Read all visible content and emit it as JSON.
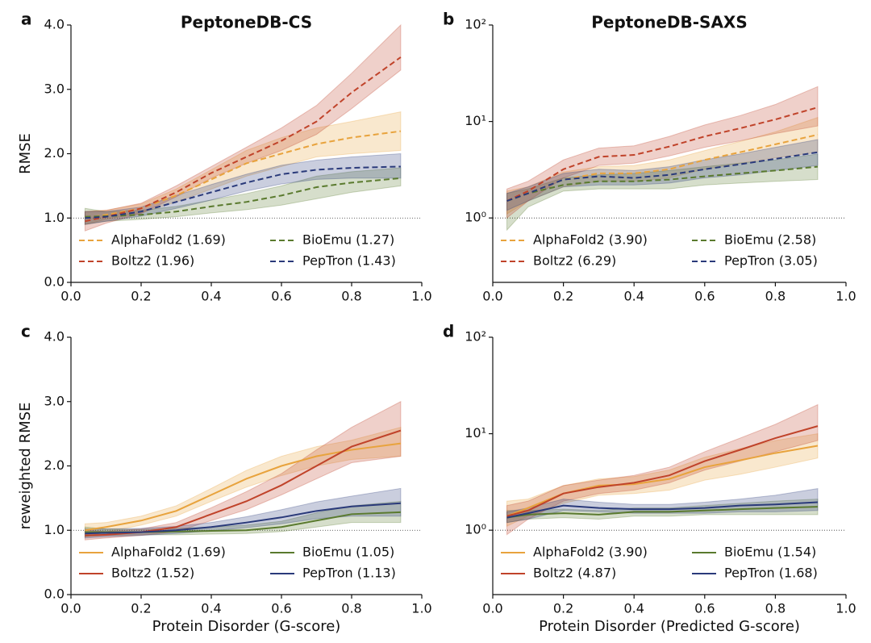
{
  "chart_data": [
    {
      "type": "line",
      "panel_label": "a",
      "title": "PeptoneDB-CS",
      "y_label": "RMSE",
      "linestyle": "dashed",
      "yscale": "linear",
      "hline": 1,
      "x": [
        0.04,
        0.1,
        0.2,
        0.3,
        0.4,
        0.5,
        0.6,
        0.7,
        0.8,
        0.94
      ],
      "xlim": [
        0,
        1
      ],
      "xticks": [
        {
          "value": 0,
          "label": "0.0"
        },
        {
          "value": 0.2,
          "label": "0.2"
        },
        {
          "value": 0.4,
          "label": "0.4"
        },
        {
          "value": 0.6,
          "label": "0.6"
        },
        {
          "value": 0.8,
          "label": "0.8"
        },
        {
          "value": 1,
          "label": "1.0"
        }
      ],
      "ylim": [
        0,
        4
      ],
      "yticks": [
        {
          "value": 0,
          "label": "0.0"
        },
        {
          "value": 1,
          "label": "1.0"
        },
        {
          "value": 2,
          "label": "2.0"
        },
        {
          "value": 3,
          "label": "3.0"
        },
        {
          "value": 4,
          "label": "4.0"
        }
      ],
      "series": [
        {
          "name": "AlphaFold2 (1.69)",
          "color": "#e8a33d",
          "values": [
            1.0,
            1.05,
            1.15,
            1.35,
            1.6,
            1.85,
            2.0,
            2.15,
            2.25,
            2.35
          ],
          "lower": [
            0.9,
            0.98,
            1.08,
            1.25,
            1.45,
            1.65,
            1.8,
            1.95,
            2.0,
            2.05
          ],
          "upper": [
            1.1,
            1.12,
            1.22,
            1.45,
            1.75,
            2.05,
            2.25,
            2.4,
            2.5,
            2.65
          ]
        },
        {
          "name": "BioEmu (1.27)",
          "color": "#5a7a2e",
          "values": [
            1.02,
            1.03,
            1.05,
            1.1,
            1.18,
            1.25,
            1.35,
            1.48,
            1.55,
            1.62
          ],
          "lower": [
            0.9,
            0.95,
            0.98,
            1.02,
            1.08,
            1.13,
            1.2,
            1.3,
            1.4,
            1.5
          ],
          "upper": [
            1.15,
            1.1,
            1.12,
            1.18,
            1.28,
            1.38,
            1.5,
            1.65,
            1.72,
            1.78
          ]
        },
        {
          "name": "Boltz2 (1.96)",
          "color": "#c0432a",
          "values": [
            0.95,
            1.02,
            1.15,
            1.4,
            1.7,
            1.95,
            2.2,
            2.5,
            2.95,
            3.5
          ],
          "lower": [
            0.8,
            0.92,
            1.07,
            1.33,
            1.62,
            1.85,
            2.05,
            2.3,
            2.7,
            3.3
          ],
          "upper": [
            1.1,
            1.12,
            1.23,
            1.5,
            1.8,
            2.1,
            2.4,
            2.75,
            3.25,
            4.0
          ]
        },
        {
          "name": "PepTron (1.43)",
          "color": "#2a3a7a",
          "values": [
            1.0,
            1.02,
            1.1,
            1.25,
            1.4,
            1.55,
            1.68,
            1.75,
            1.78,
            1.8
          ],
          "lower": [
            0.9,
            0.95,
            1.03,
            1.15,
            1.28,
            1.42,
            1.53,
            1.6,
            1.62,
            1.62
          ],
          "upper": [
            1.1,
            1.1,
            1.17,
            1.35,
            1.52,
            1.68,
            1.82,
            1.9,
            1.95,
            2.0
          ]
        }
      ]
    },
    {
      "type": "line",
      "panel_label": "b",
      "title": "PeptoneDB-SAXS",
      "linestyle": "dashed",
      "yscale": "log",
      "hline": 1,
      "x": [
        0.04,
        0.1,
        0.2,
        0.3,
        0.4,
        0.5,
        0.6,
        0.7,
        0.8,
        0.92
      ],
      "xlim": [
        0,
        1
      ],
      "xticks": [
        {
          "value": 0,
          "label": "0.0"
        },
        {
          "value": 0.2,
          "label": "0.2"
        },
        {
          "value": 0.4,
          "label": "0.4"
        },
        {
          "value": 0.6,
          "label": "0.6"
        },
        {
          "value": 0.8,
          "label": "0.8"
        },
        {
          "value": 1,
          "label": "1.0"
        }
      ],
      "ylim": [
        0.215,
        100
      ],
      "yticks": [
        {
          "value": 1,
          "label": "10⁰"
        },
        {
          "value": 10,
          "label": "10¹"
        },
        {
          "value": 100,
          "label": "10²"
        }
      ],
      "series": [
        {
          "name": "AlphaFold2 (3.90)",
          "color": "#e8a33d",
          "values": [
            1.5,
            1.8,
            2.5,
            2.9,
            2.9,
            3.2,
            4.0,
            4.8,
            5.8,
            7.3
          ],
          "lower": [
            1.1,
            1.5,
            2.1,
            2.4,
            2.4,
            2.6,
            3.2,
            3.7,
            4.2,
            4.8
          ],
          "upper": [
            1.9,
            2.1,
            3.0,
            3.4,
            3.5,
            4.0,
            5.0,
            6.2,
            7.8,
            11
          ]
        },
        {
          "name": "BioEmu (2.58)",
          "color": "#5a7a2e",
          "values": [
            1.5,
            1.8,
            2.2,
            2.4,
            2.4,
            2.5,
            2.7,
            2.9,
            3.1,
            3.4
          ],
          "lower": [
            0.75,
            1.3,
            1.9,
            2.0,
            2.0,
            2.0,
            2.2,
            2.3,
            2.4,
            2.5
          ],
          "upper": [
            1.8,
            2.0,
            2.6,
            2.8,
            2.9,
            3.1,
            3.4,
            3.7,
            4.0,
            4.6
          ]
        },
        {
          "name": "Boltz2 (6.29)",
          "color": "#c0432a",
          "values": [
            1.5,
            1.9,
            3.2,
            4.3,
            4.5,
            5.5,
            7.0,
            8.5,
            10.5,
            14
          ],
          "lower": [
            1.0,
            1.5,
            2.6,
            3.5,
            3.7,
            4.4,
            5.4,
            6.3,
            7.5,
            9
          ],
          "upper": [
            2.0,
            2.4,
            4.0,
            5.3,
            5.6,
            7.0,
            9.2,
            11.5,
            15,
            23
          ]
        },
        {
          "name": "PepTron (3.05)",
          "color": "#2a3a7a",
          "values": [
            1.5,
            1.8,
            2.5,
            2.7,
            2.6,
            2.8,
            3.2,
            3.6,
            4.1,
            4.8
          ],
          "lower": [
            1.2,
            1.5,
            2.1,
            2.2,
            2.2,
            2.3,
            2.6,
            2.8,
            3.1,
            3.5
          ],
          "upper": [
            1.8,
            2.1,
            2.9,
            3.2,
            3.1,
            3.4,
            4.0,
            4.6,
            5.4,
            6.5
          ]
        }
      ]
    },
    {
      "type": "line",
      "panel_label": "c",
      "y_label": "reweighted RMSE",
      "x_label": "Protein Disorder (G-score)",
      "linestyle": "solid",
      "yscale": "linear",
      "hline": 1,
      "x": [
        0.04,
        0.1,
        0.2,
        0.3,
        0.4,
        0.5,
        0.6,
        0.7,
        0.8,
        0.94
      ],
      "xlim": [
        0,
        1
      ],
      "xticks": [
        {
          "value": 0,
          "label": "0.0"
        },
        {
          "value": 0.2,
          "label": "0.2"
        },
        {
          "value": 0.4,
          "label": "0.4"
        },
        {
          "value": 0.6,
          "label": "0.6"
        },
        {
          "value": 0.8,
          "label": "0.8"
        },
        {
          "value": 1,
          "label": "1.0"
        }
      ],
      "ylim": [
        0,
        4
      ],
      "yticks": [
        {
          "value": 0,
          "label": "0.0"
        },
        {
          "value": 1,
          "label": "1.0"
        },
        {
          "value": 2,
          "label": "2.0"
        },
        {
          "value": 3,
          "label": "3.0"
        },
        {
          "value": 4,
          "label": "4.0"
        }
      ],
      "series": [
        {
          "name": "AlphaFold2 (1.69)",
          "color": "#e8a33d",
          "values": [
            1.0,
            1.05,
            1.15,
            1.3,
            1.55,
            1.8,
            2.0,
            2.15,
            2.25,
            2.35
          ],
          "lower": [
            0.9,
            0.97,
            1.08,
            1.22,
            1.45,
            1.67,
            1.85,
            2.0,
            2.1,
            2.15
          ],
          "upper": [
            1.1,
            1.12,
            1.22,
            1.38,
            1.65,
            1.93,
            2.15,
            2.3,
            2.4,
            2.6
          ]
        },
        {
          "name": "BioEmu (1.05)",
          "color": "#5a7a2e",
          "values": [
            0.97,
            0.97,
            0.97,
            0.98,
            0.99,
            1.0,
            1.05,
            1.15,
            1.25,
            1.28
          ],
          "lower": [
            0.9,
            0.92,
            0.93,
            0.93,
            0.94,
            0.95,
            0.98,
            1.05,
            1.12,
            1.12
          ],
          "upper": [
            1.05,
            1.02,
            1.01,
            1.03,
            1.05,
            1.08,
            1.14,
            1.27,
            1.38,
            1.45
          ]
        },
        {
          "name": "Boltz2 (1.52)",
          "color": "#c0432a",
          "values": [
            0.92,
            0.93,
            0.97,
            1.05,
            1.25,
            1.45,
            1.7,
            2.0,
            2.3,
            2.55
          ],
          "lower": [
            0.85,
            0.88,
            0.92,
            0.98,
            1.15,
            1.32,
            1.55,
            1.8,
            2.05,
            2.15
          ],
          "upper": [
            1.0,
            0.98,
            1.02,
            1.12,
            1.35,
            1.6,
            1.88,
            2.25,
            2.6,
            3.0
          ]
        },
        {
          "name": "PepTron (1.13)",
          "color": "#2a3a7a",
          "values": [
            0.95,
            0.96,
            0.97,
            1.0,
            1.05,
            1.12,
            1.2,
            1.3,
            1.37,
            1.42
          ],
          "lower": [
            0.88,
            0.9,
            0.92,
            0.95,
            0.99,
            1.04,
            1.1,
            1.18,
            1.22,
            1.22
          ],
          "upper": [
            1.02,
            1.02,
            1.03,
            1.06,
            1.12,
            1.21,
            1.32,
            1.44,
            1.53,
            1.65
          ]
        }
      ]
    },
    {
      "type": "line",
      "panel_label": "d",
      "x_label": "Protein Disorder (Predicted G-score)",
      "linestyle": "solid",
      "yscale": "log",
      "hline": 1,
      "x": [
        0.04,
        0.1,
        0.2,
        0.3,
        0.4,
        0.5,
        0.6,
        0.7,
        0.8,
        0.92
      ],
      "xlim": [
        0,
        1
      ],
      "xticks": [
        {
          "value": 0,
          "label": "0.0"
        },
        {
          "value": 0.2,
          "label": "0.2"
        },
        {
          "value": 0.4,
          "label": "0.4"
        },
        {
          "value": 0.6,
          "label": "0.6"
        },
        {
          "value": 0.8,
          "label": "0.8"
        },
        {
          "value": 1,
          "label": "1.0"
        }
      ],
      "ylim": [
        0.215,
        100
      ],
      "yticks": [
        {
          "value": 1,
          "label": "10⁰"
        },
        {
          "value": 10,
          "label": "10¹"
        },
        {
          "value": 100,
          "label": "10²"
        }
      ],
      "series": [
        {
          "name": "AlphaFold2 (3.90)",
          "color": "#e8a33d",
          "values": [
            1.4,
            1.7,
            2.4,
            2.9,
            3.0,
            3.4,
            4.5,
            5.3,
            6.3,
            7.5
          ],
          "lower": [
            1.1,
            1.4,
            1.9,
            2.3,
            2.4,
            2.6,
            3.3,
            3.8,
            4.5,
            5.6
          ],
          "upper": [
            2.0,
            2.1,
            2.9,
            3.4,
            3.6,
            4.2,
            5.7,
            7.0,
            8.5,
            10
          ]
        },
        {
          "name": "BioEmu (1.54)",
          "color": "#5a7a2e",
          "values": [
            1.35,
            1.45,
            1.5,
            1.45,
            1.55,
            1.55,
            1.6,
            1.65,
            1.7,
            1.75
          ],
          "lower": [
            1.2,
            1.3,
            1.35,
            1.3,
            1.4,
            1.4,
            1.45,
            1.45,
            1.45,
            1.45
          ],
          "upper": [
            1.6,
            1.6,
            1.65,
            1.6,
            1.7,
            1.7,
            1.8,
            1.9,
            2.0,
            2.1
          ]
        },
        {
          "name": "Boltz2 (4.87)",
          "color": "#c0432a",
          "values": [
            1.4,
            1.6,
            2.4,
            2.8,
            3.1,
            3.7,
            5.2,
            6.8,
            9.0,
            12
          ],
          "lower": [
            0.9,
            1.3,
            2.0,
            2.4,
            2.6,
            3.1,
            4.2,
            5.2,
            6.5,
            8.5
          ],
          "upper": [
            1.8,
            2.0,
            2.9,
            3.3,
            3.7,
            4.5,
            6.5,
            9.0,
            12.5,
            20
          ]
        },
        {
          "name": "PepTron (1.68)",
          "color": "#2a3a7a",
          "values": [
            1.35,
            1.5,
            1.8,
            1.7,
            1.65,
            1.65,
            1.7,
            1.8,
            1.85,
            1.95
          ],
          "lower": [
            1.2,
            1.3,
            1.6,
            1.55,
            1.5,
            1.5,
            1.5,
            1.55,
            1.55,
            1.6
          ],
          "upper": [
            1.55,
            1.7,
            2.1,
            1.95,
            1.85,
            1.85,
            1.95,
            2.1,
            2.3,
            2.7
          ]
        }
      ]
    }
  ]
}
